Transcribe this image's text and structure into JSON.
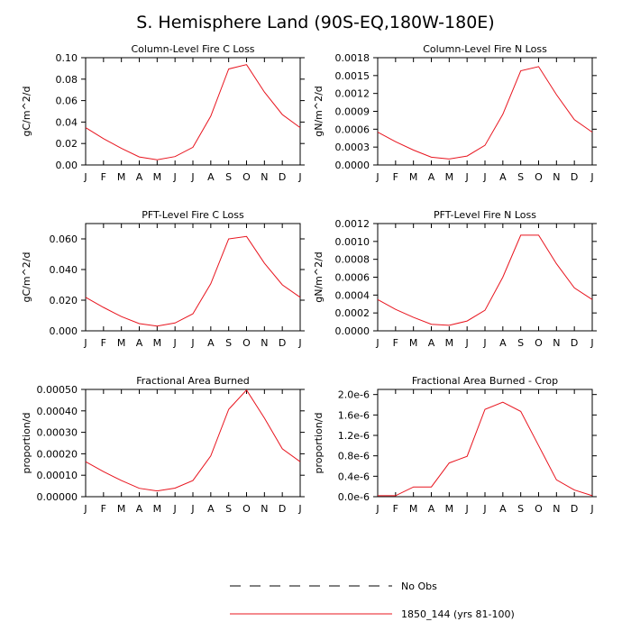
{
  "title": "S. Hemisphere Land (90S-EQ,180W-180E)",
  "legend": {
    "placement": "bottom-center",
    "entries": [
      {
        "label": "No Obs",
        "style": "dashed",
        "color": "#000000"
      },
      {
        "label": "1850_144 (yrs 81-100)",
        "style": "solid",
        "color": "#e8141e"
      }
    ]
  },
  "chart_data": [
    {
      "type": "line",
      "title": "Column-Level Fire C Loss",
      "ylabel": "gC/m^2/d",
      "categories": [
        "J",
        "F",
        "M",
        "A",
        "M",
        "J",
        "J",
        "A",
        "S",
        "O",
        "N",
        "D",
        "J"
      ],
      "ylim": [
        0,
        0.1
      ],
      "yticks": [
        "0.00",
        "0.02",
        "0.04",
        "0.06",
        "0.08",
        "0.10"
      ],
      "series": [
        {
          "name": "1850_144 (yrs 81-100)",
          "color": "#e8141e",
          "values": [
            0.0348,
            0.0245,
            0.0155,
            0.0075,
            0.0048,
            0.0078,
            0.0165,
            0.0455,
            0.0895,
            0.0935,
            0.068,
            0.047,
            0.0348
          ]
        }
      ]
    },
    {
      "type": "line",
      "title": "Column-Level Fire N Loss",
      "ylabel": "gN/m^2/d",
      "categories": [
        "J",
        "F",
        "M",
        "A",
        "M",
        "J",
        "J",
        "A",
        "S",
        "O",
        "N",
        "D",
        "J"
      ],
      "ylim": [
        0,
        0.0018
      ],
      "yticks": [
        "0.0000",
        "0.0003",
        "0.0006",
        "0.0009",
        "0.0012",
        "0.0015",
        "0.0018"
      ],
      "series": [
        {
          "name": "1850_144 (yrs 81-100)",
          "color": "#e8141e",
          "values": [
            0.00055,
            0.00039,
            0.00025,
            0.00013,
            0.0001,
            0.00015,
            0.00033,
            0.00085,
            0.00158,
            0.00165,
            0.00118,
            0.00076,
            0.00055
          ]
        }
      ]
    },
    {
      "type": "line",
      "title": "PFT-Level Fire C Loss",
      "ylabel": "gC/m^2/d",
      "categories": [
        "J",
        "F",
        "M",
        "A",
        "M",
        "J",
        "J",
        "A",
        "S",
        "O",
        "N",
        "D",
        "J"
      ],
      "ylim": [
        0,
        0.07
      ],
      "yticks": [
        "0.000",
        "0.020",
        "0.040",
        "0.060"
      ],
      "series": [
        {
          "name": "1850_144 (yrs 81-100)",
          "color": "#e8141e",
          "values": [
            0.0219,
            0.0153,
            0.0093,
            0.0047,
            0.0031,
            0.0051,
            0.0111,
            0.0307,
            0.06,
            0.0616,
            0.0442,
            0.03,
            0.0219
          ]
        }
      ]
    },
    {
      "type": "line",
      "title": "PFT-Level Fire N Loss",
      "ylabel": "gN/m^2/d",
      "categories": [
        "J",
        "F",
        "M",
        "A",
        "M",
        "J",
        "J",
        "A",
        "S",
        "O",
        "N",
        "D",
        "J"
      ],
      "ylim": [
        0,
        0.0012
      ],
      "yticks": [
        "0.0000",
        "0.0002",
        "0.0004",
        "0.0006",
        "0.0008",
        "0.0010",
        "0.0012"
      ],
      "series": [
        {
          "name": "1850_144 (yrs 81-100)",
          "color": "#e8141e",
          "values": [
            0.00035,
            0.00024,
            0.00015,
            7.4e-05,
            6.2e-05,
            0.00011,
            0.00023,
            0.0006,
            0.00107,
            0.00107,
            0.00075,
            0.00048,
            0.00035
          ]
        }
      ]
    },
    {
      "type": "line",
      "title": "Fractional Area Burned",
      "ylabel": "proportion/d",
      "categories": [
        "J",
        "F",
        "M",
        "A",
        "M",
        "J",
        "J",
        "A",
        "S",
        "O",
        "N",
        "D",
        "J"
      ],
      "ylim": [
        0,
        0.0005
      ],
      "yticks": [
        "0.00000",
        "0.00010",
        "0.00020",
        "0.00030",
        "0.00040",
        "0.00050"
      ],
      "series": [
        {
          "name": "1850_144 (yrs 81-100)",
          "color": "#e8141e",
          "values": [
            0.000163,
            0.000117,
            7.5e-05,
            3.9e-05,
            2.7e-05,
            4e-05,
            7.5e-05,
            0.00019,
            0.000407,
            0.000497,
            0.000367,
            0.000223,
            0.000163
          ]
        }
      ]
    },
    {
      "type": "line",
      "title": "Fractional Area Burned - Crop",
      "ylabel": "proportion/d",
      "categories": [
        "J",
        "F",
        "M",
        "A",
        "M",
        "J",
        "J",
        "A",
        "S",
        "O",
        "N",
        "D",
        "J"
      ],
      "ylim": [
        0,
        2.1e-06
      ],
      "yticks": [
        "0.0e-6",
        "0.4e-6",
        "0.8e-6",
        "1.2e-6",
        "1.6e-6",
        "2.0e-6"
      ],
      "series": [
        {
          "name": "1850_144 (yrs 81-100)",
          "color": "#e8141e",
          "values": [
            2e-08,
            2e-08,
            1.9e-07,
            1.9e-07,
            6.6e-07,
            7.9e-07,
            1.71e-06,
            1.85e-06,
            1.67e-06,
            1e-06,
            3.3e-07,
            1.3e-07,
            2e-08
          ]
        }
      ]
    }
  ]
}
